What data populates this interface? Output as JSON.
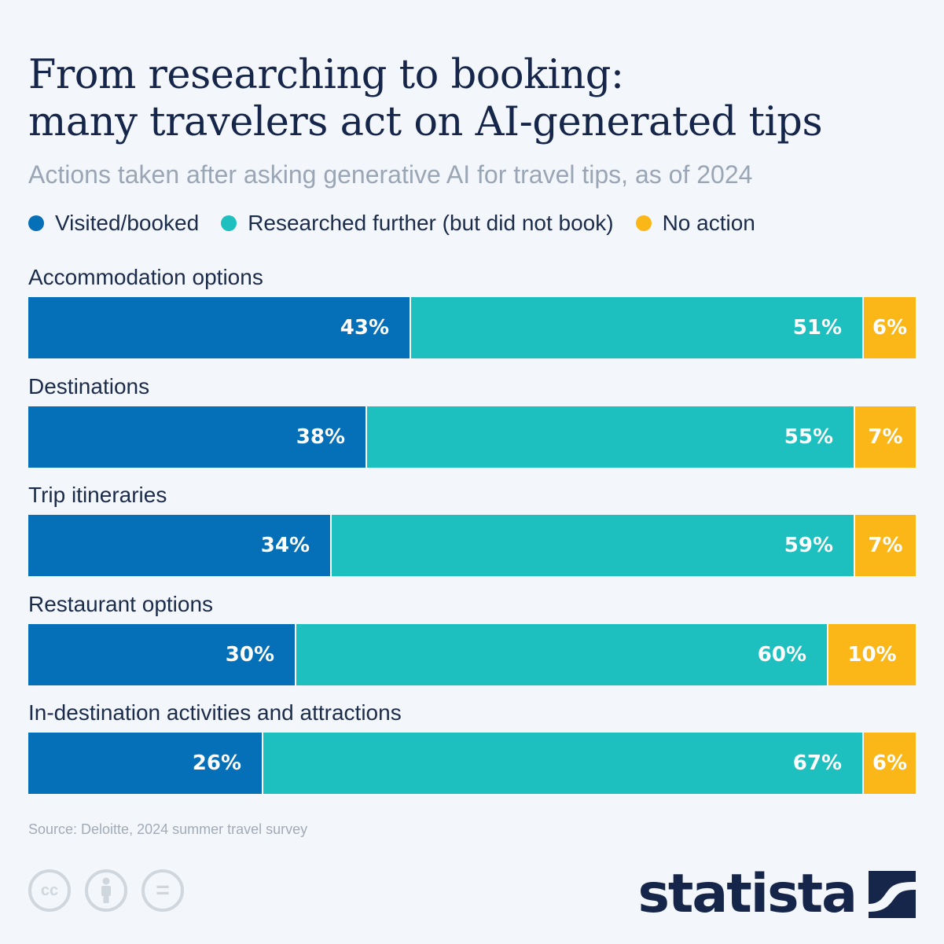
{
  "header": {
    "title_line1": "From researching to booking:",
    "title_line2": "many travelers act on AI-generated tips",
    "subtitle": "Actions taken after asking generative AI for travel tips, as of 2024"
  },
  "colors": {
    "visited": "#0570b8",
    "researched": "#1dbfbf",
    "no_action": "#fbb718"
  },
  "chart_data": {
    "type": "bar",
    "orientation": "horizontal",
    "stacked": true,
    "percent": true,
    "categories": [
      "Accommodation options",
      "Destinations",
      "Trip itineraries",
      "Restaurant options",
      "In-destination activities and attractions"
    ],
    "series": [
      {
        "name": "Visited/booked",
        "color": "#0570b8",
        "values": [
          43,
          38,
          34,
          30,
          26
        ]
      },
      {
        "name": "Researched further (but did not book)",
        "color": "#1dbfbf",
        "values": [
          51,
          55,
          59,
          60,
          67
        ]
      },
      {
        "name": "No action",
        "color": "#fbb718",
        "values": [
          6,
          7,
          7,
          10,
          6
        ]
      }
    ],
    "value_labels": [
      [
        "43%",
        "51%",
        "6%"
      ],
      [
        "38%",
        "55%",
        "7%"
      ],
      [
        "34%",
        "59%",
        "7%"
      ],
      [
        "30%",
        "60%",
        "10%"
      ],
      [
        "26%",
        "67%",
        "6%"
      ]
    ],
    "legend_position": "top-left",
    "grid": false
  },
  "footer": {
    "source": "Source: Deloitte, 2024 summer travel survey",
    "brand": "statista",
    "license_icons": [
      "cc-icon",
      "attribution-icon",
      "no-derivatives-icon"
    ],
    "cc_text": "cc",
    "nd_text": "="
  }
}
